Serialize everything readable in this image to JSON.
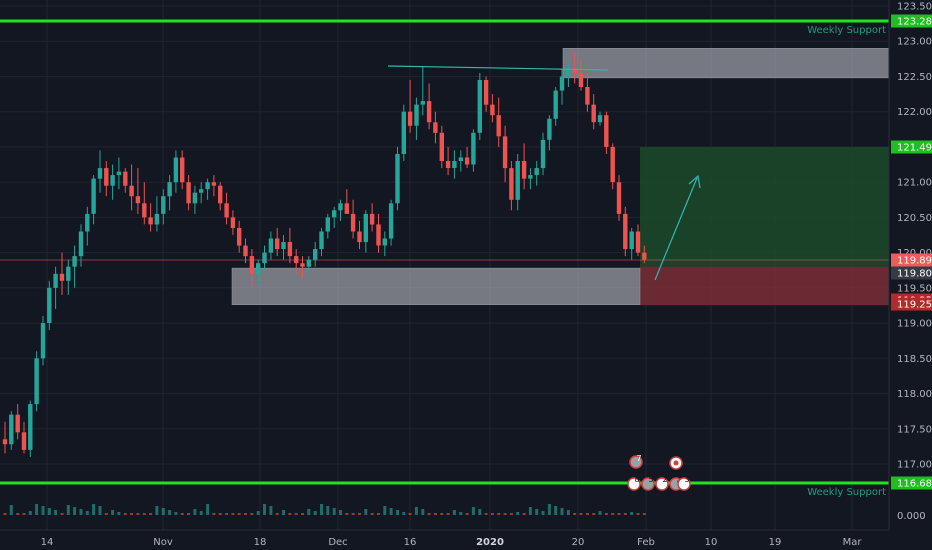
{
  "colors": {
    "background": "#131722",
    "grid": "#1f2433",
    "axis_text": "#b2b5be",
    "bull": "#26a69a",
    "bear": "#ef5350",
    "support_line": "#1ee61e",
    "zone_fill": "#c8c8d2",
    "target_fill": "#1c4a2a",
    "stop_fill": "#7a2e36",
    "trend_line": "#2fb8b0",
    "price_tag_red": "#f05a5a",
    "price_tag_green": "#1ebf1e",
    "price_tag_gray": "#363a45"
  },
  "price_axis": {
    "min": 116.9,
    "max": 123.6,
    "labels": [
      "123.500",
      "123.000",
      "122.500",
      "122.000",
      "121.500",
      "121.000",
      "120.500",
      "120.000",
      "119.500",
      "119.000",
      "118.500",
      "118.000",
      "117.500",
      "117.000"
    ]
  },
  "price_tags": {
    "weekly_top": "123.284",
    "target": "121.499",
    "current": "119.895",
    "entry": "119.802",
    "stop_upper": "119.254",
    "stop_lower": "119.254",
    "weekly_bottom": "116.683"
  },
  "annotations": {
    "weekly_support_top": "Weekly Support",
    "weekly_support_bottom": "Weekly Support"
  },
  "volume_axis": {
    "label": "0.000"
  },
  "time_axis": {
    "labels": [
      "14",
      "Nov",
      "18",
      "Dec",
      "16",
      "2020",
      "20",
      "Feb",
      "10",
      "19",
      "Mar"
    ]
  },
  "events": {
    "top_badge": "7",
    "bottom_badges": [
      "8",
      "5",
      "2",
      "2",
      "3"
    ]
  },
  "levels": {
    "weekly_top": 123.284,
    "weekly_bottom": 116.683,
    "target": 121.499,
    "entry": 119.802,
    "stop": 119.254,
    "current": 119.895,
    "resistance_zone": [
      122.48,
      122.9
    ],
    "demand_zone": [
      119.26,
      119.78
    ]
  }
}
